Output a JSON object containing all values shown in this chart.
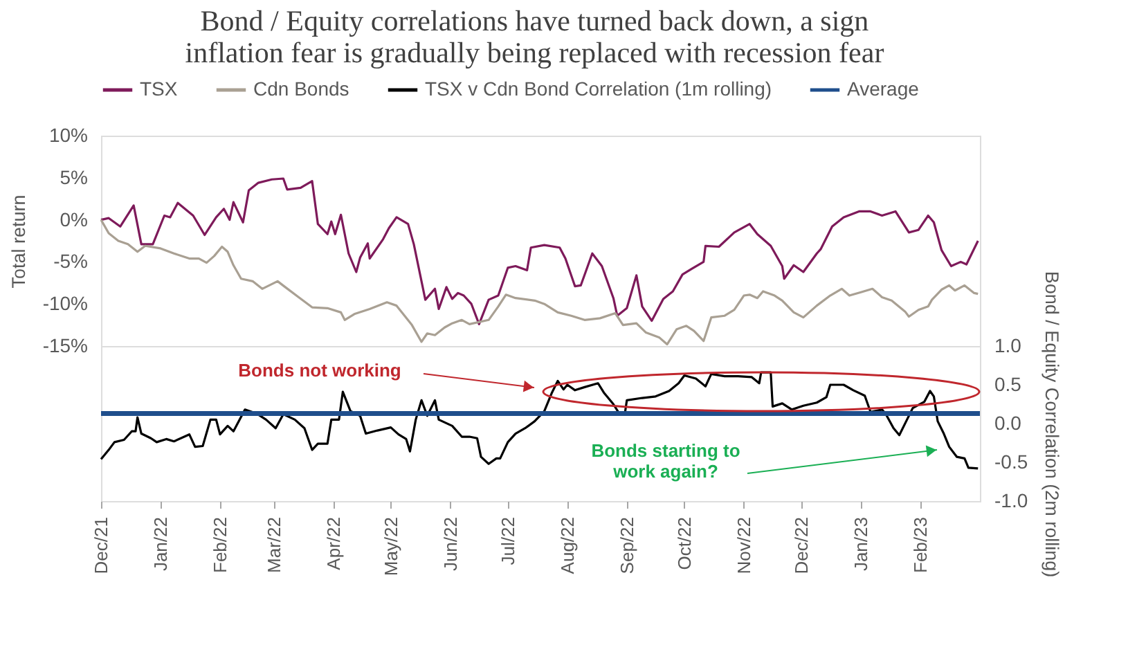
{
  "chart_data": [
    {
      "type": "line",
      "title": "Bond / Equity correlations have turned back down, a sign inflation fear is gradually being replaced with recession fear",
      "ylabel": "Total return",
      "legend": "top",
      "tick_labels": "y",
      "grid": false,
      "xlim": [
        "2021-12-01",
        "2023-03-04"
      ],
      "ylim": [
        -15,
        10
      ],
      "yticks": [
        {
          "value": 10,
          "label": "10%"
        },
        {
          "value": 5,
          "label": "5%"
        },
        {
          "value": 0,
          "label": "0%"
        },
        {
          "value": -5,
          "label": "-5%"
        },
        {
          "value": -10,
          "label": "-10%"
        },
        {
          "value": -15,
          "label": "-15%"
        }
      ],
      "series": [
        {
          "name": "TSX",
          "color": "#7e1a5a",
          "x": [
            "2021-12-01",
            "2021-12-05",
            "2021-12-11",
            "2021-12-18",
            "2021-12-22",
            "2021-12-28",
            "2022-01-03",
            "2022-01-06",
            "2022-01-10",
            "2022-01-18",
            "2022-01-24",
            "2022-01-30",
            "2022-02-03",
            "2022-02-06",
            "2022-02-08",
            "2022-02-13",
            "2022-02-16",
            "2022-02-21",
            "2022-02-28",
            "2022-03-06",
            "2022-03-08",
            "2022-03-15",
            "2022-03-21",
            "2022-03-24",
            "2022-03-29",
            "2022-03-31",
            "2022-04-02",
            "2022-04-05",
            "2022-04-09",
            "2022-04-13",
            "2022-04-15",
            "2022-04-19",
            "2022-04-20",
            "2022-04-27",
            "2022-04-30",
            "2022-05-04",
            "2022-05-10",
            "2022-05-13",
            "2022-05-19",
            "2022-05-24",
            "2022-05-26",
            "2022-05-30",
            "2022-06-02",
            "2022-06-05",
            "2022-06-08",
            "2022-06-12",
            "2022-06-16",
            "2022-06-21",
            "2022-06-26",
            "2022-07-01",
            "2022-07-05",
            "2022-07-11",
            "2022-07-13",
            "2022-07-20",
            "2022-07-28",
            "2022-07-31",
            "2022-08-05",
            "2022-08-08",
            "2022-08-14",
            "2022-08-19",
            "2022-08-25",
            "2022-08-27",
            "2022-09-01",
            "2022-09-06",
            "2022-09-09",
            "2022-09-14",
            "2022-09-20",
            "2022-09-25",
            "2022-09-30",
            "2022-10-05",
            "2022-10-11",
            "2022-10-12",
            "2022-10-19",
            "2022-10-27",
            "2022-11-04",
            "2022-11-08",
            "2022-11-15",
            "2022-11-21",
            "2022-11-22",
            "2022-11-27",
            "2022-12-02",
            "2022-12-09",
            "2022-12-11",
            "2022-12-17",
            "2022-12-23",
            "2022-12-31",
            "2023-01-06",
            "2023-01-12",
            "2023-01-19",
            "2023-01-26",
            "2023-01-31",
            "2023-02-05",
            "2023-02-08",
            "2023-02-12",
            "2023-02-17",
            "2023-02-22",
            "2023-02-25",
            "2023-03-03"
          ],
          "values": [
            0,
            0.2,
            -0.8,
            1.7,
            -2.9,
            -2.9,
            0.5,
            0.3,
            2.0,
            0.5,
            -1.8,
            0.3,
            1.3,
            0.0,
            2.1,
            -0.3,
            3.5,
            4.4,
            4.8,
            4.9,
            3.6,
            3.8,
            4.6,
            -0.5,
            -1.7,
            -0.2,
            -1.7,
            0.6,
            -4.0,
            -6.2,
            -4.5,
            -2.8,
            -4.6,
            -2.3,
            -1.0,
            0.3,
            -0.5,
            -2.9,
            -9.5,
            -8.2,
            -10.6,
            -8.0,
            -9.4,
            -8.7,
            -9.0,
            -10.0,
            -12.4,
            -9.5,
            -9.0,
            -5.7,
            -5.5,
            -6.0,
            -3.3,
            -3.0,
            -3.3,
            -4.6,
            -7.9,
            -7.8,
            -4.0,
            -5.5,
            -9.3,
            -11.4,
            -10.5,
            -6.6,
            -10.3,
            -12.0,
            -9.4,
            -8.5,
            -6.5,
            -5.8,
            -5.0,
            -3.1,
            -3.2,
            -1.5,
            -0.5,
            -1.7,
            -3.1,
            -5.5,
            -7.0,
            -5.4,
            -6.2,
            -4.0,
            -3.5,
            -0.8,
            0.3,
            1.0,
            1.0,
            0.5,
            1.0,
            -1.5,
            -1.2,
            0.5,
            -0.3,
            -3.6,
            -5.5,
            -5.0,
            -5.3,
            -2.5
          ]
        },
        {
          "name": "Cdn Bonds",
          "color": "#a9a093",
          "x": [
            "2021-12-01",
            "2021-12-05",
            "2021-12-10",
            "2021-12-15",
            "2021-12-20",
            "2021-12-24",
            "2022-01-01",
            "2022-01-08",
            "2022-01-16",
            "2022-01-21",
            "2022-01-25",
            "2022-01-29",
            "2022-02-02",
            "2022-02-05",
            "2022-02-08",
            "2022-02-12",
            "2022-02-18",
            "2022-02-23",
            "2022-03-03",
            "2022-03-07",
            "2022-03-14",
            "2022-03-21",
            "2022-03-29",
            "2022-04-05",
            "2022-04-07",
            "2022-04-12",
            "2022-04-20",
            "2022-04-29",
            "2022-05-04",
            "2022-05-12",
            "2022-05-17",
            "2022-05-20",
            "2022-05-24",
            "2022-05-29",
            "2022-06-02",
            "2022-06-07",
            "2022-06-11",
            "2022-06-21",
            "2022-06-26",
            "2022-06-30",
            "2022-07-05",
            "2022-07-15",
            "2022-07-20",
            "2022-07-27",
            "2022-08-03",
            "2022-08-10",
            "2022-08-18",
            "2022-08-26",
            "2022-08-30",
            "2022-09-06",
            "2022-09-11",
            "2022-09-18",
            "2022-09-22",
            "2022-09-27",
            "2022-10-02",
            "2022-10-06",
            "2022-10-11",
            "2022-10-15",
            "2022-10-22",
            "2022-10-27",
            "2022-11-01",
            "2022-11-04",
            "2022-11-08",
            "2022-11-11",
            "2022-11-17",
            "2022-11-21",
            "2022-11-27",
            "2022-12-02",
            "2022-12-09",
            "2022-12-16",
            "2022-12-22",
            "2022-12-26",
            "2023-01-01",
            "2023-01-07",
            "2023-01-12",
            "2023-01-17",
            "2023-01-24",
            "2023-01-26",
            "2023-01-31",
            "2023-02-05",
            "2023-02-07",
            "2023-02-12",
            "2023-02-16",
            "2023-02-19",
            "2023-02-24",
            "2023-03-01",
            "2023-03-03"
          ],
          "values": [
            0,
            -1.6,
            -2.5,
            -2.9,
            -3.8,
            -3.1,
            -3.4,
            -4.0,
            -4.6,
            -4.6,
            -5.1,
            -4.3,
            -3.2,
            -3.8,
            -5.4,
            -7.0,
            -7.3,
            -8.2,
            -7.3,
            -8.0,
            -9.2,
            -10.4,
            -10.5,
            -11.0,
            -11.9,
            -11.2,
            -10.6,
            -9.8,
            -10.2,
            -12.5,
            -14.5,
            -13.5,
            -13.7,
            -12.8,
            -12.3,
            -11.9,
            -12.4,
            -11.9,
            -10.3,
            -8.9,
            -9.3,
            -9.6,
            -10.0,
            -11.0,
            -11.4,
            -11.9,
            -11.7,
            -11.1,
            -12.5,
            -12.3,
            -13.4,
            -14.0,
            -14.8,
            -13.0,
            -12.6,
            -13.2,
            -14.4,
            -11.6,
            -11.4,
            -10.7,
            -9.0,
            -8.9,
            -9.3,
            -8.5,
            -9.0,
            -9.6,
            -11.0,
            -11.6,
            -10.2,
            -9.0,
            -8.2,
            -9.0,
            -8.6,
            -8.2,
            -9.2,
            -9.6,
            -10.9,
            -11.5,
            -10.7,
            -10.3,
            -9.5,
            -8.3,
            -7.8,
            -8.4,
            -7.8,
            -8.7,
            -8.8
          ]
        }
      ]
    },
    {
      "type": "line",
      "y2label": "Bond / Equity Correlation (2m rolling)",
      "grid": false,
      "legend": "top",
      "xlim": [
        "2021-12-01",
        "2023-03-04"
      ],
      "xticks": [
        {
          "value": "2021-12-01",
          "label": "Dec/21"
        },
        {
          "value": "2022-01-01",
          "label": "Jan/22"
        },
        {
          "value": "2022-02-01",
          "label": "Feb/22"
        },
        {
          "value": "2022-03-01",
          "label": "Mar/22"
        },
        {
          "value": "2022-04-01",
          "label": "Apr/22"
        },
        {
          "value": "2022-05-01",
          "label": "May/22"
        },
        {
          "value": "2022-06-01",
          "label": "Jun/22"
        },
        {
          "value": "2022-07-01",
          "label": "Jul/22"
        },
        {
          "value": "2022-08-01",
          "label": "Aug/22"
        },
        {
          "value": "2022-09-01",
          "label": "Sep/22"
        },
        {
          "value": "2022-10-01",
          "label": "Oct/22"
        },
        {
          "value": "2022-11-01",
          "label": "Nov/22"
        },
        {
          "value": "2022-12-01",
          "label": "Dec/22"
        },
        {
          "value": "2023-01-01",
          "label": "Jan/23"
        },
        {
          "value": "2023-02-01",
          "label": "Feb/23"
        }
      ],
      "y2lim": [
        -1,
        1
      ],
      "y2ticks": [
        {
          "value": 1,
          "label": "1.0"
        },
        {
          "value": 0.5,
          "label": "0.5"
        },
        {
          "value": 0,
          "label": "0.0"
        },
        {
          "value": -0.5,
          "label": "-0.5"
        },
        {
          "value": -1,
          "label": "-1.0"
        }
      ],
      "series": [
        {
          "name": "TSX v Cdn Bond Correlation (1m rolling)",
          "color": "#000000",
          "axis": "y2",
          "x": [
            "2021-12-01",
            "2021-12-05",
            "2021-12-08",
            "2021-12-13",
            "2021-12-17",
            "2021-12-19",
            "2021-12-20",
            "2021-12-22",
            "2021-12-27",
            "2021-12-30",
            "2022-01-04",
            "2022-01-08",
            "2022-01-16",
            "2022-01-19",
            "2022-01-23",
            "2022-01-27",
            "2022-01-30",
            "2022-02-01",
            "2022-02-05",
            "2022-02-08",
            "2022-02-14",
            "2022-02-20",
            "2022-02-25",
            "2022-03-02",
            "2022-03-06",
            "2022-03-12",
            "2022-03-17",
            "2022-03-21",
            "2022-03-24",
            "2022-03-29",
            "2022-03-31",
            "2022-04-04",
            "2022-04-06",
            "2022-04-10",
            "2022-04-15",
            "2022-04-18",
            "2022-04-24",
            "2022-05-01",
            "2022-05-05",
            "2022-05-09",
            "2022-05-11",
            "2022-05-14",
            "2022-05-17",
            "2022-05-20",
            "2022-05-24",
            "2022-05-26",
            "2022-06-02",
            "2022-06-07",
            "2022-06-11",
            "2022-06-15",
            "2022-06-17",
            "2022-06-21",
            "2022-06-25",
            "2022-06-27",
            "2022-07-01",
            "2022-07-05",
            "2022-07-10",
            "2022-07-15",
            "2022-07-20",
            "2022-07-24",
            "2022-07-27",
            "2022-07-30",
            "2022-08-01",
            "2022-08-05",
            "2022-08-10",
            "2022-08-17",
            "2022-08-20",
            "2022-08-25",
            "2022-08-28",
            "2022-08-31",
            "2022-09-01",
            "2022-09-09",
            "2022-09-16",
            "2022-09-23",
            "2022-09-28",
            "2022-10-01",
            "2022-10-07",
            "2022-10-12",
            "2022-10-15",
            "2022-10-22",
            "2022-10-29",
            "2022-11-05",
            "2022-11-09",
            "2022-11-10",
            "2022-11-15",
            "2022-11-16",
            "2022-11-21",
            "2022-11-26",
            "2022-12-02",
            "2022-12-09",
            "2022-12-14",
            "2022-12-16",
            "2022-12-23",
            "2022-12-28",
            "2023-01-03",
            "2023-01-06",
            "2023-01-12",
            "2023-01-14",
            "2023-01-18",
            "2023-01-21",
            "2023-01-25",
            "2023-01-28",
            "2023-02-03",
            "2023-02-06",
            "2023-02-08",
            "2023-02-10",
            "2023-02-13",
            "2023-02-16",
            "2023-02-20",
            "2023-02-24",
            "2023-02-26",
            "2023-03-03"
          ],
          "values": [
            -0.46,
            -0.34,
            -0.24,
            -0.21,
            -0.1,
            -0.1,
            0.08,
            -0.13,
            -0.19,
            -0.24,
            -0.2,
            -0.23,
            -0.14,
            -0.3,
            -0.29,
            0.05,
            0.05,
            -0.14,
            -0.03,
            -0.1,
            0.18,
            0.13,
            0.05,
            -0.06,
            0.12,
            0.05,
            -0.06,
            -0.34,
            -0.26,
            -0.26,
            0.05,
            0.05,
            0.41,
            0.16,
            0.1,
            -0.13,
            -0.09,
            -0.05,
            -0.14,
            -0.2,
            -0.36,
            0.05,
            0.3,
            0.1,
            0.3,
            0.05,
            -0.03,
            -0.17,
            -0.17,
            -0.19,
            -0.43,
            -0.52,
            -0.45,
            -0.45,
            -0.24,
            -0.13,
            -0.06,
            0.03,
            0.16,
            0.4,
            0.55,
            0.44,
            0.5,
            0.43,
            0.47,
            0.52,
            0.4,
            0.25,
            0.13,
            0.13,
            0.3,
            0.33,
            0.35,
            0.42,
            0.52,
            0.62,
            0.58,
            0.48,
            0.64,
            0.61,
            0.61,
            0.6,
            0.52,
            0.66,
            0.66,
            0.22,
            0.26,
            0.18,
            0.23,
            0.27,
            0.34,
            0.5,
            0.5,
            0.43,
            0.36,
            0.15,
            0.18,
            0.12,
            -0.06,
            -0.15,
            0.05,
            0.2,
            0.28,
            0.42,
            0.35,
            0.03,
            -0.12,
            -0.3,
            -0.43,
            -0.45,
            -0.57,
            -0.58
          ]
        }
      ],
      "ref_lines": [
        {
          "axis": "y2",
          "value": 0.13,
          "label": "Average",
          "color": "#1f4e8c"
        }
      ],
      "annotations": [
        "Bonds not working",
        "Bonds starting to work again?"
      ]
    }
  ]
}
